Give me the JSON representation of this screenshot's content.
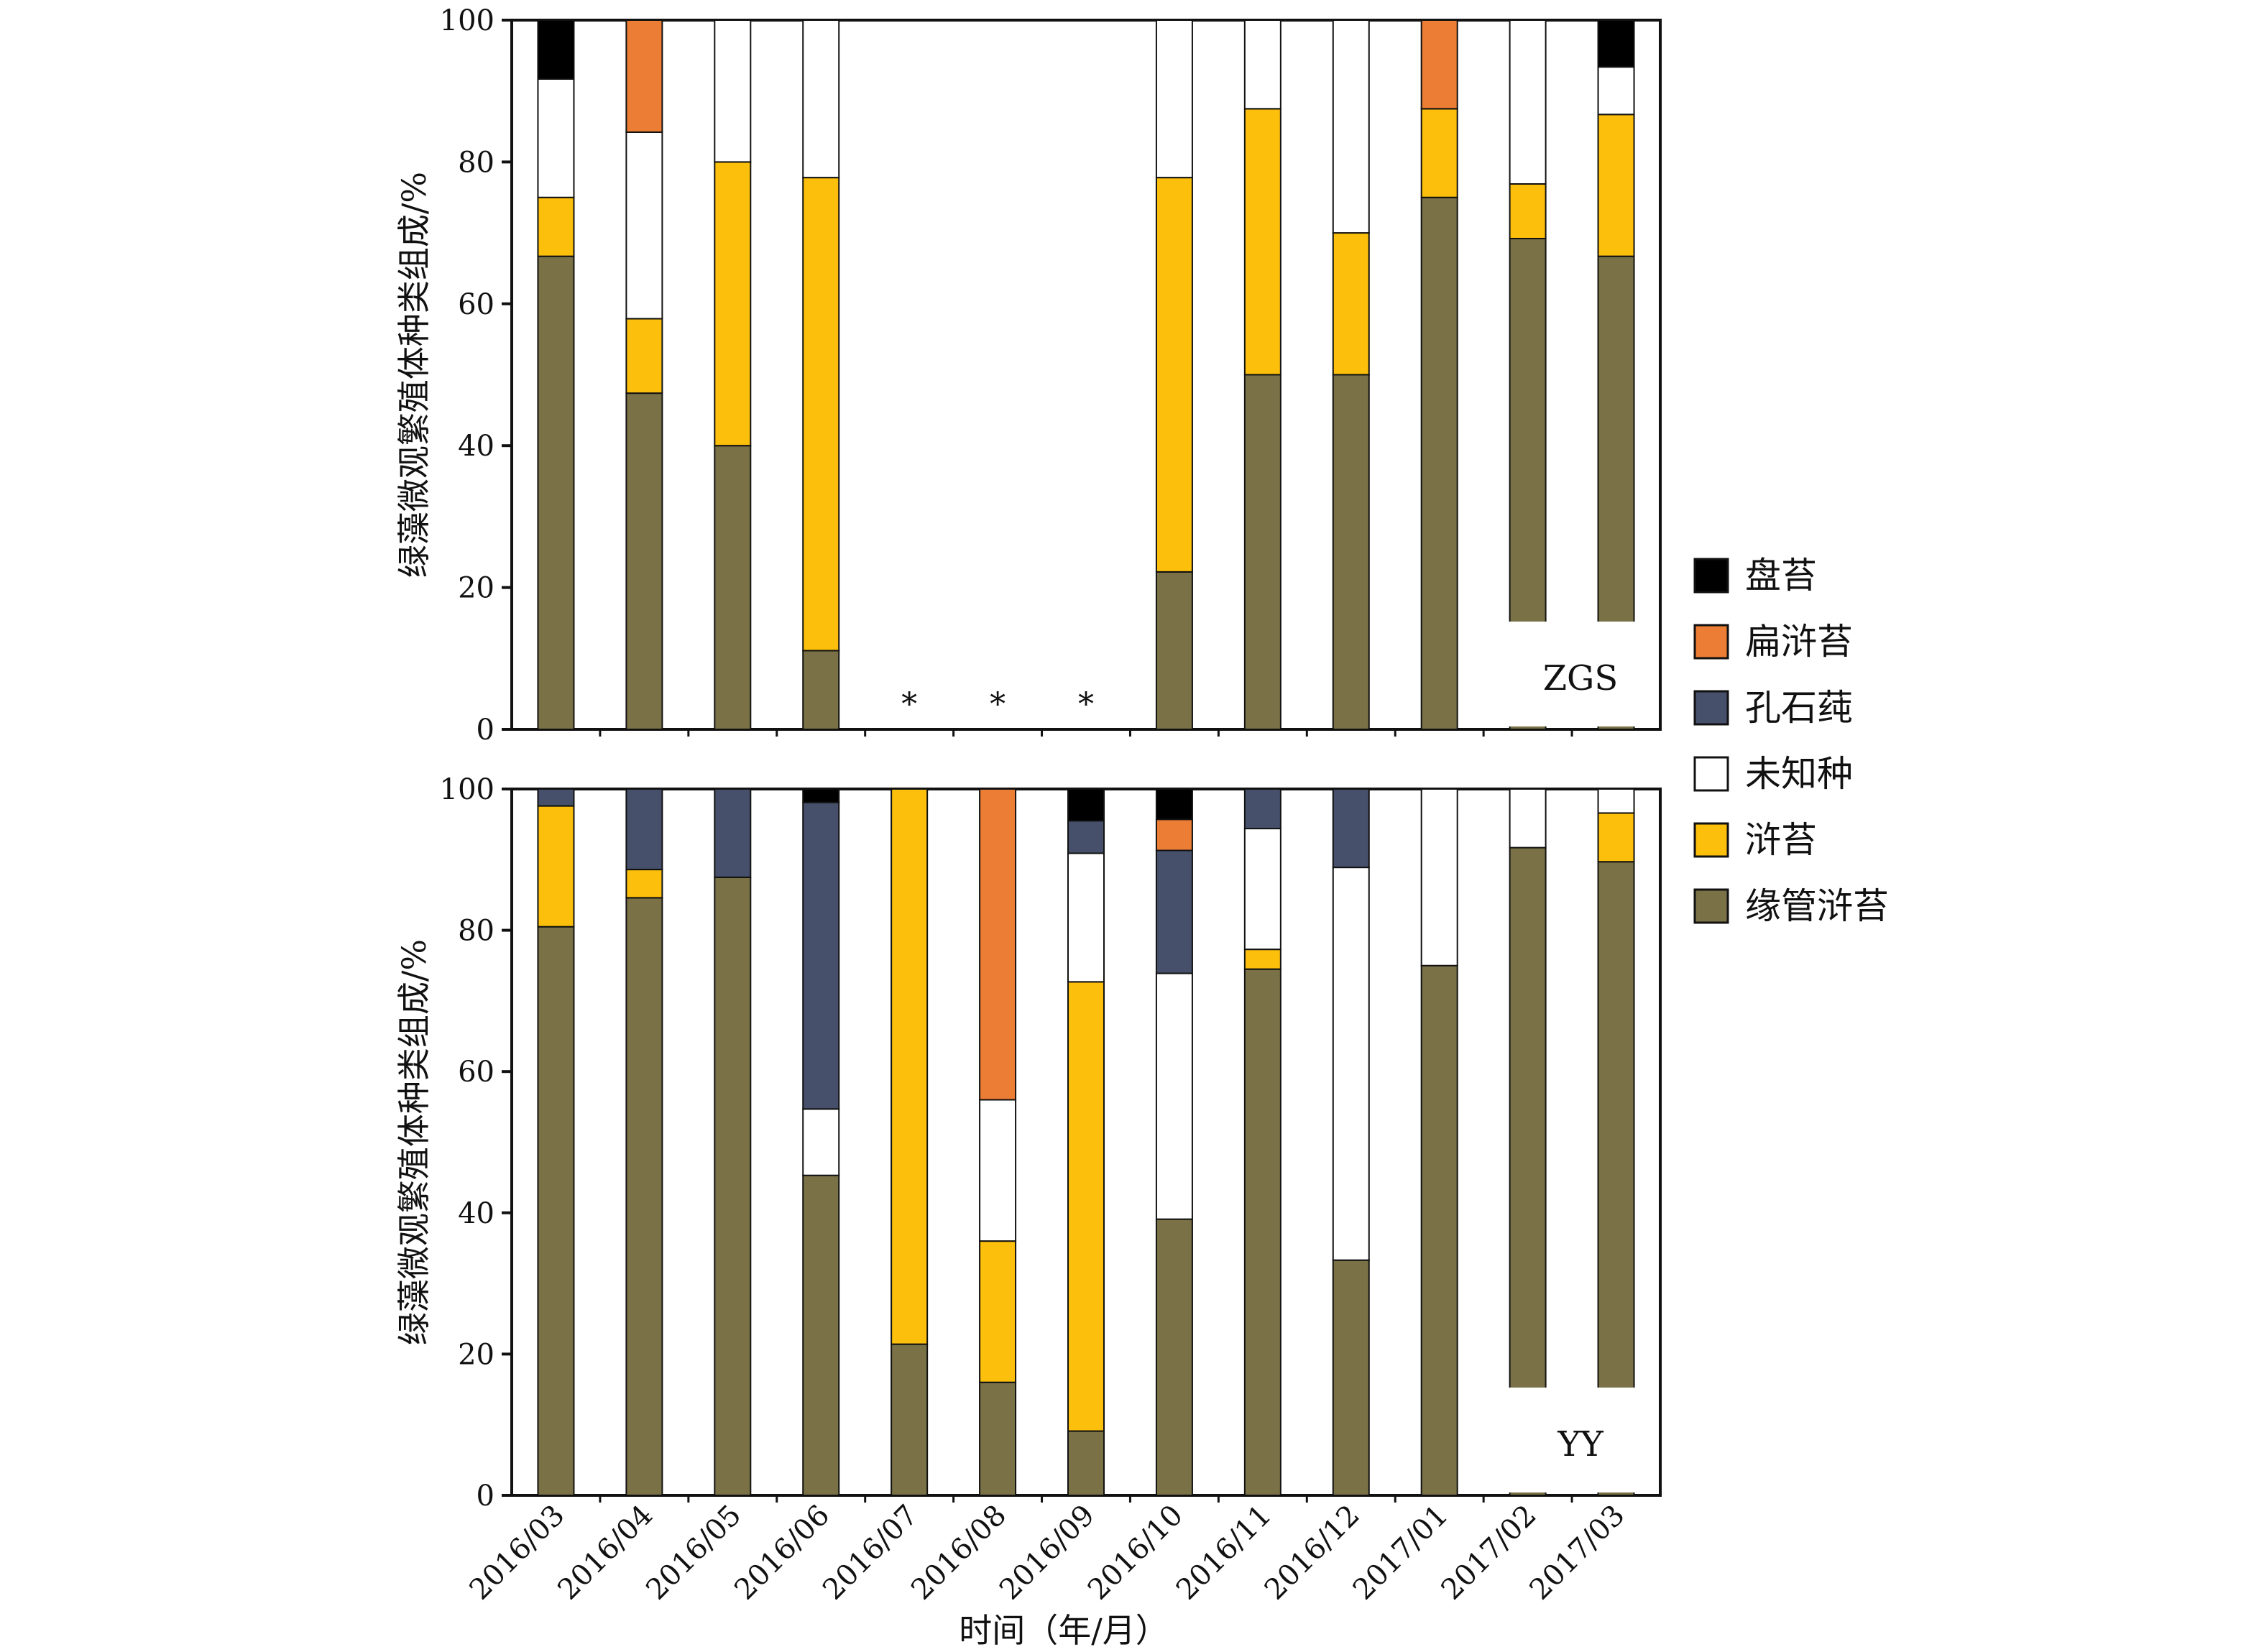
{
  "chart_data": {
    "type": "bar",
    "stacked": true,
    "categories": [
      "2016/03",
      "2016/04",
      "2016/05",
      "2016/06",
      "2016/07",
      "2016/08",
      "2016/09",
      "2016/10",
      "2016/11",
      "2016/12",
      "2017/01",
      "2017/02",
      "2017/03"
    ],
    "series_names": [
      "缘管浒苔",
      "浒苔",
      "未知种",
      "孔石莼",
      "扁浒苔",
      "盘苔"
    ],
    "colors": [
      "#7a7246",
      "#fbbf0c",
      "#ffffff",
      "#46506a",
      "#ec7d34",
      "#000000"
    ],
    "xlabel": "时间（年/月）",
    "ylabel": "绿藻微观繁殖体种类组成/%",
    "ylim": [
      0,
      100
    ],
    "yticks": [
      "0",
      "20",
      "40",
      "60",
      "80",
      "100"
    ],
    "legend_position": "right",
    "panels": [
      {
        "tag": "ZGS",
        "missing_marker": "*",
        "missing_categories": [
          "2016/07",
          "2016/08",
          "2016/09"
        ],
        "series": [
          {
            "name": "缘管浒苔",
            "values": [
              66.7,
              47.4,
              40,
              11.1,
              null,
              null,
              null,
              22.2,
              50,
              50,
              75,
              69.2,
              66.7
            ]
          },
          {
            "name": "浒苔",
            "values": [
              8.3,
              10.5,
              40,
              66.7,
              null,
              null,
              null,
              55.6,
              37.5,
              20,
              12.5,
              7.7,
              20
            ]
          },
          {
            "name": "未知种",
            "values": [
              16.7,
              26.3,
              20,
              22.2,
              null,
              null,
              null,
              22.2,
              12.5,
              30,
              0,
              23.1,
              6.7
            ]
          },
          {
            "name": "孔石莼",
            "values": [
              0,
              0,
              0,
              0,
              null,
              null,
              null,
              0,
              0,
              0,
              0,
              0,
              0
            ]
          },
          {
            "name": "扁浒苔",
            "values": [
              0,
              15.8,
              0,
              0,
              null,
              null,
              null,
              0,
              0,
              0,
              12.5,
              0,
              0
            ]
          },
          {
            "name": "盘苔",
            "values": [
              8.3,
              0,
              0,
              0,
              null,
              null,
              null,
              0,
              0,
              0,
              0,
              0,
              6.6
            ]
          }
        ]
      },
      {
        "tag": "YY",
        "series": [
          {
            "name": "缘管浒苔",
            "values": [
              80.5,
              84.6,
              87.5,
              45.3,
              21.4,
              16,
              9.1,
              39.1,
              74.5,
              33.3,
              75,
              91.7,
              89.7
            ]
          },
          {
            "name": "浒苔",
            "values": [
              17.1,
              4,
              0,
              0,
              78.6,
              20,
              63.6,
              0,
              2.8,
              0,
              0,
              0,
              6.9
            ]
          },
          {
            "name": "未知种",
            "values": [
              0,
              0,
              0,
              9.4,
              0,
              20,
              18.2,
              34.8,
              17.1,
              55.6,
              25,
              8.3,
              3.4
            ]
          },
          {
            "name": "孔石莼",
            "values": [
              2.4,
              11.4,
              12.5,
              43.4,
              0,
              0,
              4.6,
              17.4,
              5.6,
              11.1,
              0,
              0,
              0
            ]
          },
          {
            "name": "扁浒苔",
            "values": [
              0,
              0,
              0,
              0,
              0,
              44,
              0,
              4.4,
              0,
              0,
              0,
              0,
              0
            ]
          },
          {
            "name": "盘苔",
            "values": [
              0,
              0,
              0,
              1.9,
              0,
              0,
              4.5,
              4.3,
              0,
              0,
              0,
              0,
              0
            ]
          }
        ]
      }
    ],
    "legend": [
      {
        "name": "盘苔",
        "color": "#000000"
      },
      {
        "name": "扁浒苔",
        "color": "#ec7d34"
      },
      {
        "name": "孔石莼",
        "color": "#46506a"
      },
      {
        "name": "未知种",
        "color": "#ffffff"
      },
      {
        "name": "浒苔",
        "color": "#fbbf0c"
      },
      {
        "name": "缘管浒苔",
        "color": "#7a7246"
      }
    ]
  }
}
